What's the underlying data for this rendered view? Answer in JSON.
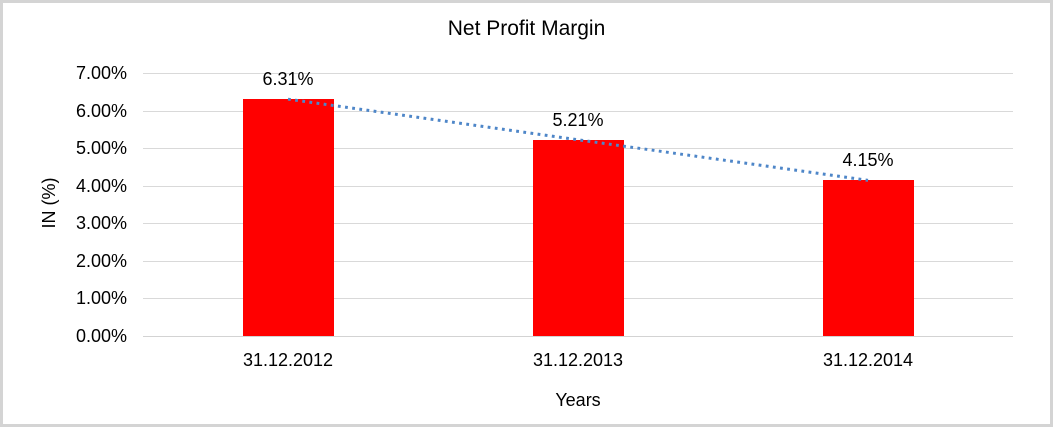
{
  "chart_data": {
    "type": "bar",
    "title": "Net Profit Margin",
    "xlabel": "Years",
    "ylabel": "IN (%)",
    "categories": [
      "31.12.2012",
      "31.12.2013",
      "31.12.2014"
    ],
    "values": [
      6.31,
      5.21,
      4.15
    ],
    "data_labels": [
      "6.31%",
      "5.21%",
      "4.15%"
    ],
    "ylim": [
      0,
      7
    ],
    "ytick_step": 1,
    "ytick_labels": [
      "0.00%",
      "1.00%",
      "2.00%",
      "3.00%",
      "4.00%",
      "5.00%",
      "6.00%",
      "7.00%"
    ],
    "grid": true,
    "legend": "none",
    "bar_color": "#ff0000",
    "gridline_color": "#d9d9d9",
    "axis_line_color": "#d3d3d3",
    "chart_border_color": "#d4d4d4",
    "background": "#ffffff",
    "trendline": {
      "type": "linear",
      "style": "dotted",
      "color": "#4e86c8"
    }
  }
}
